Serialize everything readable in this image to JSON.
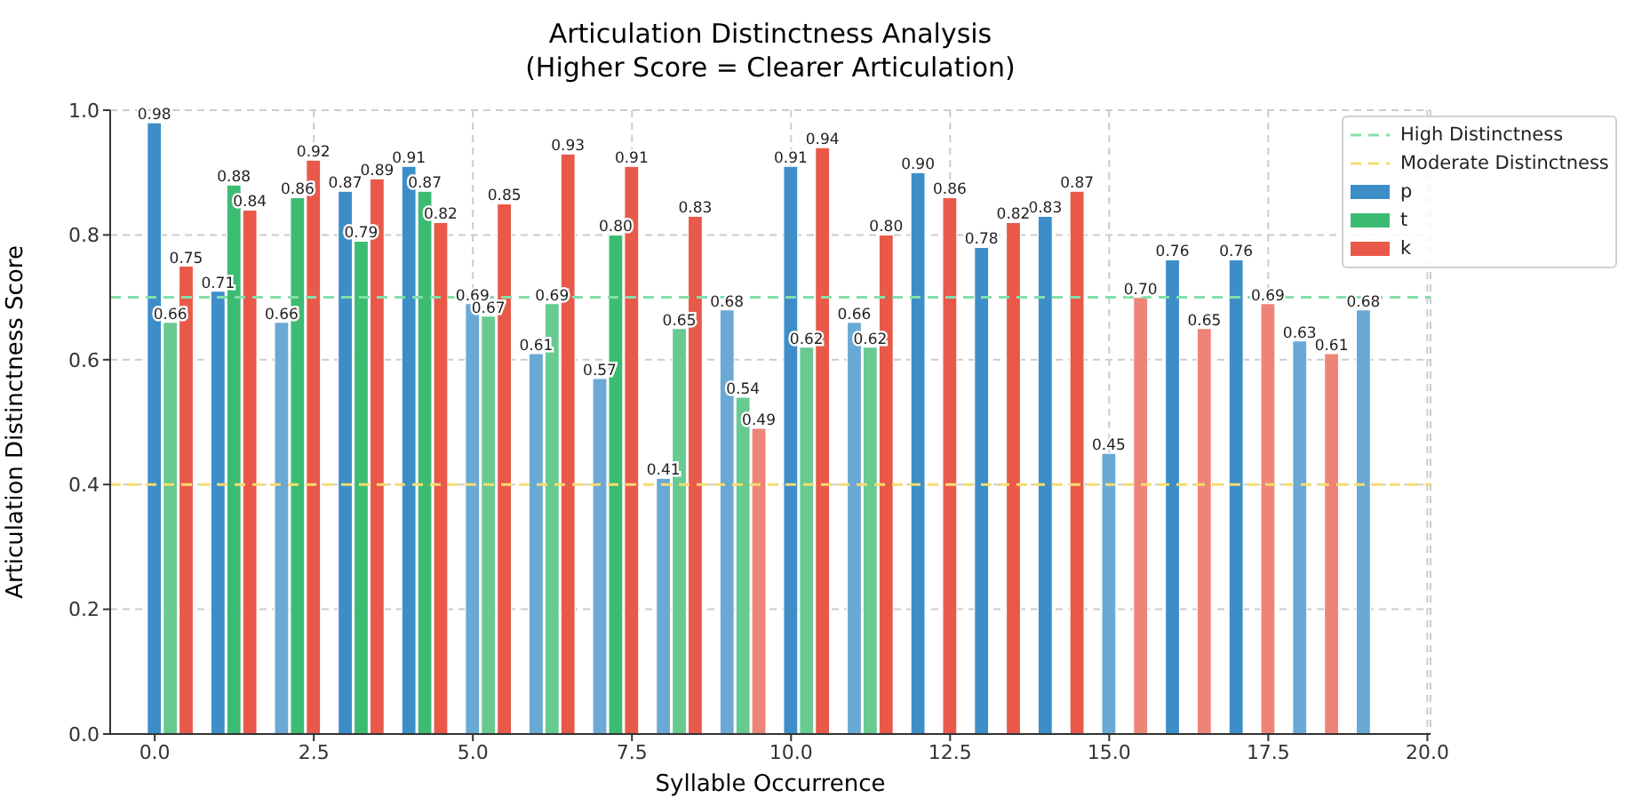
{
  "chart_data": {
    "type": "bar",
    "title": "Articulation Distinctness Analysis",
    "subtitle": "(Higher Score = Clearer Articulation)",
    "xlabel": "Syllable Occurrence",
    "ylabel": "Articulation Distinctness Score",
    "xlim": [
      -0.7,
      20.05
    ],
    "xticks": [
      {
        "value": 0,
        "label": "0.0"
      },
      2.5,
      {
        "value": 5,
        "label": "5.0"
      },
      7.5,
      {
        "value": 10,
        "label": "10.0"
      },
      12.5,
      {
        "value": 15,
        "label": "15.0"
      },
      17.5,
      {
        "value": 20,
        "label": "20.0"
      }
    ],
    "ylim": [
      0,
      1
    ],
    "yticks": [
      {
        "value": 0,
        "label": "0.0"
      },
      {
        "value": 0.2,
        "label": "0.2"
      },
      {
        "value": 0.4,
        "label": "0.4"
      },
      {
        "value": 0.6,
        "label": "0.6"
      },
      {
        "value": 0.8,
        "label": "0.8"
      },
      {
        "value": 1,
        "label": "1.0"
      }
    ],
    "grid": true,
    "legend": "top right",
    "ref_lines": [
      {
        "axis": "y",
        "value": 0.7,
        "label": "High Distinctness",
        "color": "#82e0aa",
        "line_style": "dashed"
      },
      {
        "axis": "y",
        "value": 0.4,
        "label": "Moderate Distinctness",
        "color": "#f7dc6f",
        "line_style": "dashed"
      }
    ],
    "series": [
      {
        "name": "p",
        "color": "#3d8ec8",
        "x": [
          0,
          1,
          2,
          3,
          4,
          5,
          6,
          7,
          8,
          9,
          10,
          11,
          12,
          13,
          14,
          15,
          16,
          17,
          18,
          19
        ],
        "values": [
          0.98,
          0.71,
          0.66,
          0.87,
          0.91,
          0.69,
          0.61,
          0.57,
          0.41,
          0.68,
          0.91,
          0.66,
          0.9,
          0.78,
          0.83,
          0.45,
          0.76,
          0.76,
          0.63,
          0.68
        ],
        "colors": [
          "#3d8ec8",
          "#3d8ec8",
          "#6aa9d5",
          "#3d8ec8",
          "#3d8ec8",
          "#6aa9d5",
          "#6aa9d5",
          "#6aa9d5",
          "#6aa9d5",
          "#6aa9d5",
          "#3d8ec8",
          "#6aa9d5",
          "#3d8ec8",
          "#3d8ec8",
          "#3d8ec8",
          "#6aa9d5",
          "#3d8ec8",
          "#3d8ec8",
          "#6aa9d5",
          "#6aa9d5"
        ],
        "value_labels": [
          "0.98",
          "0.71",
          "0.66",
          "0.87",
          "0.91",
          "0.69",
          "0.61",
          "0.57",
          "0.41",
          "0.68",
          "0.91",
          "0.66",
          "0.90",
          "0.78",
          "0.83",
          "0.45",
          "0.76",
          "0.76",
          "0.63",
          "0.68"
        ]
      },
      {
        "name": "t",
        "color": "#3cbc72",
        "x": [
          0.25,
          1.25,
          2.25,
          3.25,
          4.25,
          5.25,
          6.25,
          7.25,
          8.25,
          9.25,
          10.25,
          11.25
        ],
        "values": [
          0.66,
          0.88,
          0.86,
          0.79,
          0.87,
          0.67,
          0.69,
          0.8,
          0.65,
          0.54,
          0.62,
          0.62
        ],
        "colors": [
          "#67ca90",
          "#3cbc72",
          "#3cbc72",
          "#3cbc72",
          "#3cbc72",
          "#67ca90",
          "#67ca90",
          "#3cbc72",
          "#67ca90",
          "#67ca90",
          "#67ca90",
          "#67ca90"
        ],
        "value_labels": [
          "0.66",
          "0.88",
          "0.86",
          "0.79",
          "0.87",
          "0.67",
          "0.69",
          "0.80",
          "0.65",
          "0.54",
          "0.62",
          "0.62"
        ]
      },
      {
        "name": "k",
        "color": "#e8594a",
        "x": [
          0.5,
          1.5,
          2.5,
          3.5,
          4.5,
          5.5,
          6.5,
          7.5,
          8.5,
          9.5,
          10.5,
          11.5,
          12.5,
          13.5,
          14.5,
          15.5,
          16.5,
          17.5,
          18.5
        ],
        "values": [
          0.75,
          0.84,
          0.92,
          0.89,
          0.82,
          0.85,
          0.93,
          0.91,
          0.83,
          0.49,
          0.94,
          0.8,
          0.86,
          0.82,
          0.87,
          0.7,
          0.65,
          0.69,
          0.61
        ],
        "colors": [
          "#e8594a",
          "#e8594a",
          "#e8594a",
          "#e8594a",
          "#e8594a",
          "#e8594a",
          "#e8594a",
          "#e8594a",
          "#e8594a",
          "#ee8478",
          "#e8594a",
          "#e8594a",
          "#e8594a",
          "#e8594a",
          "#e8594a",
          "#ee8478",
          "#ee8478",
          "#ee8478",
          "#ee8478"
        ],
        "value_labels": [
          "0.75",
          "0.84",
          "0.92",
          "0.89",
          "0.82",
          "0.85",
          "0.93",
          "0.91",
          "0.83",
          "0.49",
          "0.94",
          "0.80",
          "0.86",
          "0.82",
          "0.87",
          "0.70",
          "0.65",
          "0.69",
          "0.61"
        ]
      }
    ]
  }
}
